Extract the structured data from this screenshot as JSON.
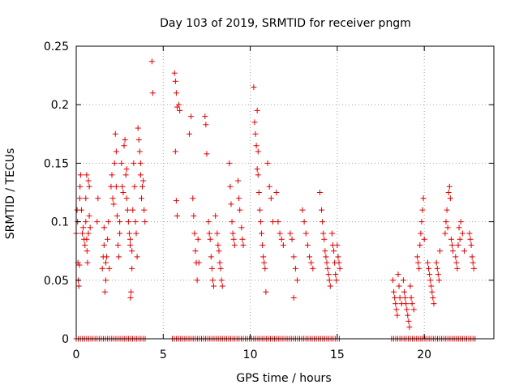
{
  "chart_data": {
    "type": "scatter",
    "title": "Day 103 of 2019, SRMTID for receiver pngm",
    "xlabel": "GPS time / hours",
    "ylabel": "SRMTID / TECUs",
    "xlim": [
      0,
      24
    ],
    "ylim": [
      0,
      0.25
    ],
    "x_ticks": [
      0,
      5,
      10,
      15,
      20
    ],
    "x_tick_labels": [
      "0",
      "5",
      "10",
      "15",
      "20"
    ],
    "y_ticks": [
      0,
      0.05,
      0.1,
      0.15,
      0.2,
      0.25
    ],
    "y_tick_labels": [
      "0",
      "0.05",
      "0.1",
      "0.15",
      "0.2",
      "0.25"
    ],
    "grid": true,
    "marker": "+",
    "color": "#e00000",
    "series": [
      {
        "name": "SRMTID",
        "points": [
          [
            0.0,
            0.09
          ],
          [
            0.05,
            0.11
          ],
          [
            0.08,
            0.1
          ],
          [
            0.1,
            0.065
          ],
          [
            0.12,
            0.05
          ],
          [
            0.15,
            0.045
          ],
          [
            0.18,
            0.063
          ],
          [
            0.2,
            0.12
          ],
          [
            0.22,
            0.13
          ],
          [
            0.25,
            0.14
          ],
          [
            0.3,
            0.11
          ],
          [
            0.35,
            0.09
          ],
          [
            0.4,
            0.095
          ],
          [
            0.45,
            0.085
          ],
          [
            0.5,
            0.08
          ],
          [
            0.55,
            0.1
          ],
          [
            0.55,
            0.12
          ],
          [
            0.6,
            0.14
          ],
          [
            0.6,
            0.085
          ],
          [
            0.62,
            0.075
          ],
          [
            0.65,
            0.065
          ],
          [
            0.7,
            0.09
          ],
          [
            0.7,
            0.135
          ],
          [
            0.75,
            0.13
          ],
          [
            0.75,
            0.105
          ],
          [
            0.8,
            0.095
          ],
          [
            1.2,
            0.1
          ],
          [
            1.25,
            0.12
          ],
          [
            1.5,
            0.06
          ],
          [
            1.55,
            0.07
          ],
          [
            1.6,
            0.08
          ],
          [
            1.6,
            0.095
          ],
          [
            1.65,
            0.04
          ],
          [
            1.7,
            0.05
          ],
          [
            1.7,
            0.065
          ],
          [
            1.75,
            0.07
          ],
          [
            1.8,
            0.085
          ],
          [
            1.85,
            0.1
          ],
          [
            1.9,
            0.06
          ],
          [
            2.0,
            0.13
          ],
          [
            2.05,
            0.14
          ],
          [
            2.1,
            0.12
          ],
          [
            2.15,
            0.115
          ],
          [
            2.2,
            0.15
          ],
          [
            2.25,
            0.175
          ],
          [
            2.3,
            0.16
          ],
          [
            2.3,
            0.13
          ],
          [
            2.35,
            0.105
          ],
          [
            2.4,
            0.08
          ],
          [
            2.45,
            0.07
          ],
          [
            2.5,
            0.1
          ],
          [
            2.5,
            0.09
          ],
          [
            2.6,
            0.15
          ],
          [
            2.65,
            0.13
          ],
          [
            2.7,
            0.125
          ],
          [
            2.75,
            0.165
          ],
          [
            2.8,
            0.17
          ],
          [
            2.85,
            0.14
          ],
          [
            2.9,
            0.12
          ],
          [
            2.9,
            0.145
          ],
          [
            2.95,
            0.11
          ],
          [
            3.0,
            0.1
          ],
          [
            3.05,
            0.09
          ],
          [
            3.1,
            0.085
          ],
          [
            3.1,
            0.08
          ],
          [
            3.12,
            0.035
          ],
          [
            3.15,
            0.04
          ],
          [
            3.2,
            0.06
          ],
          [
            3.2,
            0.075
          ],
          [
            3.25,
            0.11
          ],
          [
            3.3,
            0.15
          ],
          [
            3.35,
            0.13
          ],
          [
            3.4,
            0.1
          ],
          [
            3.45,
            0.09
          ],
          [
            3.5,
            0.07
          ],
          [
            3.55,
            0.18
          ],
          [
            3.6,
            0.17
          ],
          [
            3.65,
            0.16
          ],
          [
            3.7,
            0.15
          ],
          [
            3.7,
            0.14
          ],
          [
            3.75,
            0.12
          ],
          [
            3.8,
            0.13
          ],
          [
            3.85,
            0.135
          ],
          [
            3.9,
            0.11
          ],
          [
            3.95,
            0.1
          ],
          [
            4.35,
            0.237
          ],
          [
            4.4,
            0.21
          ],
          [
            5.65,
            0.227
          ],
          [
            5.7,
            0.22
          ],
          [
            5.75,
            0.21
          ],
          [
            5.8,
            0.198
          ],
          [
            5.7,
            0.16
          ],
          [
            5.75,
            0.118
          ],
          [
            5.8,
            0.105
          ],
          [
            5.9,
            0.2
          ],
          [
            5.95,
            0.195
          ],
          [
            6.5,
            0.175
          ],
          [
            6.6,
            0.19
          ],
          [
            6.7,
            0.12
          ],
          [
            6.75,
            0.105
          ],
          [
            6.8,
            0.09
          ],
          [
            6.85,
            0.075
          ],
          [
            6.9,
            0.065
          ],
          [
            6.95,
            0.05
          ],
          [
            7.0,
            0.085
          ],
          [
            7.05,
            0.065
          ],
          [
            7.4,
            0.19
          ],
          [
            7.45,
            0.183
          ],
          [
            7.5,
            0.158
          ],
          [
            7.6,
            0.1
          ],
          [
            7.65,
            0.09
          ],
          [
            7.7,
            0.085
          ],
          [
            7.75,
            0.07
          ],
          [
            7.8,
            0.06
          ],
          [
            7.85,
            0.05
          ],
          [
            7.9,
            0.045
          ],
          [
            8.0,
            0.105
          ],
          [
            8.1,
            0.09
          ],
          [
            8.15,
            0.08
          ],
          [
            8.2,
            0.075
          ],
          [
            8.25,
            0.065
          ],
          [
            8.3,
            0.06
          ],
          [
            8.35,
            0.05
          ],
          [
            8.4,
            0.045
          ],
          [
            8.8,
            0.15
          ],
          [
            8.85,
            0.13
          ],
          [
            8.9,
            0.115
          ],
          [
            8.95,
            0.1
          ],
          [
            9.0,
            0.09
          ],
          [
            9.05,
            0.085
          ],
          [
            9.1,
            0.08
          ],
          [
            9.3,
            0.135
          ],
          [
            9.35,
            0.12
          ],
          [
            9.4,
            0.11
          ],
          [
            9.5,
            0.095
          ],
          [
            9.55,
            0.085
          ],
          [
            9.6,
            0.08
          ],
          [
            10.2,
            0.215
          ],
          [
            10.25,
            0.185
          ],
          [
            10.3,
            0.175
          ],
          [
            10.35,
            0.165
          ],
          [
            10.4,
            0.195
          ],
          [
            10.45,
            0.16
          ],
          [
            10.4,
            0.145
          ],
          [
            10.45,
            0.14
          ],
          [
            10.5,
            0.125
          ],
          [
            10.55,
            0.11
          ],
          [
            10.6,
            0.1
          ],
          [
            10.65,
            0.09
          ],
          [
            10.7,
            0.08
          ],
          [
            10.75,
            0.07
          ],
          [
            10.8,
            0.065
          ],
          [
            10.85,
            0.06
          ],
          [
            10.9,
            0.04
          ],
          [
            11.0,
            0.15
          ],
          [
            11.1,
            0.13
          ],
          [
            11.2,
            0.12
          ],
          [
            11.3,
            0.1
          ],
          [
            11.5,
            0.125
          ],
          [
            11.6,
            0.1
          ],
          [
            11.7,
            0.09
          ],
          [
            11.8,
            0.085
          ],
          [
            11.9,
            0.08
          ],
          [
            12.3,
            0.09
          ],
          [
            12.4,
            0.085
          ],
          [
            12.5,
            0.07
          ],
          [
            12.6,
            0.06
          ],
          [
            12.7,
            0.05
          ],
          [
            12.5,
            0.035
          ],
          [
            13.0,
            0.11
          ],
          [
            13.1,
            0.1
          ],
          [
            13.2,
            0.09
          ],
          [
            13.3,
            0.08
          ],
          [
            13.4,
            0.07
          ],
          [
            13.5,
            0.065
          ],
          [
            13.6,
            0.06
          ],
          [
            14.0,
            0.125
          ],
          [
            14.1,
            0.11
          ],
          [
            14.15,
            0.1
          ],
          [
            14.2,
            0.09
          ],
          [
            14.25,
            0.085
          ],
          [
            14.3,
            0.075
          ],
          [
            14.35,
            0.07
          ],
          [
            14.4,
            0.065
          ],
          [
            14.45,
            0.06
          ],
          [
            14.5,
            0.055
          ],
          [
            14.55,
            0.05
          ],
          [
            14.6,
            0.045
          ],
          [
            14.7,
            0.09
          ],
          [
            14.75,
            0.08
          ],
          [
            14.8,
            0.075
          ],
          [
            14.85,
            0.065
          ],
          [
            14.9,
            0.055
          ],
          [
            14.95,
            0.05
          ],
          [
            15.0,
            0.08
          ],
          [
            15.05,
            0.07
          ],
          [
            15.1,
            0.065
          ],
          [
            15.15,
            0.06
          ],
          [
            18.2,
            0.05
          ],
          [
            18.25,
            0.04
          ],
          [
            18.3,
            0.035
          ],
          [
            18.35,
            0.03
          ],
          [
            18.4,
            0.025
          ],
          [
            18.45,
            0.02
          ],
          [
            18.5,
            0.055
          ],
          [
            18.55,
            0.045
          ],
          [
            18.6,
            0.035
          ],
          [
            18.7,
            0.03
          ],
          [
            18.8,
            0.05
          ],
          [
            18.85,
            0.04
          ],
          [
            18.9,
            0.035
          ],
          [
            18.95,
            0.03
          ],
          [
            19.0,
            0.025
          ],
          [
            19.05,
            0.02
          ],
          [
            19.1,
            0.015
          ],
          [
            19.15,
            0.01
          ],
          [
            19.2,
            0.045
          ],
          [
            19.25,
            0.035
          ],
          [
            19.3,
            0.03
          ],
          [
            19.4,
            0.025
          ],
          [
            19.6,
            0.07
          ],
          [
            19.65,
            0.065
          ],
          [
            19.7,
            0.06
          ],
          [
            19.75,
            0.08
          ],
          [
            19.8,
            0.09
          ],
          [
            19.85,
            0.1
          ],
          [
            19.9,
            0.11
          ],
          [
            19.95,
            0.12
          ],
          [
            20.0,
            0.085
          ],
          [
            20.2,
            0.065
          ],
          [
            20.25,
            0.06
          ],
          [
            20.3,
            0.055
          ],
          [
            20.35,
            0.05
          ],
          [
            20.4,
            0.045
          ],
          [
            20.45,
            0.04
          ],
          [
            20.5,
            0.035
          ],
          [
            20.55,
            0.03
          ],
          [
            20.7,
            0.065
          ],
          [
            20.75,
            0.06
          ],
          [
            20.8,
            0.055
          ],
          [
            20.85,
            0.05
          ],
          [
            20.9,
            0.075
          ],
          [
            21.2,
            0.09
          ],
          [
            21.25,
            0.1
          ],
          [
            21.3,
            0.11
          ],
          [
            21.35,
            0.095
          ],
          [
            21.4,
            0.125
          ],
          [
            21.45,
            0.13
          ],
          [
            21.5,
            0.12
          ],
          [
            21.55,
            0.085
          ],
          [
            21.6,
            0.08
          ],
          [
            21.65,
            0.075
          ],
          [
            21.8,
            0.07
          ],
          [
            21.85,
            0.065
          ],
          [
            21.9,
            0.06
          ],
          [
            21.95,
            0.08
          ],
          [
            22.0,
            0.095
          ],
          [
            22.05,
            0.085
          ],
          [
            22.1,
            0.1
          ],
          [
            22.2,
            0.09
          ],
          [
            22.3,
            0.075
          ],
          [
            22.6,
            0.09
          ],
          [
            22.65,
            0.085
          ],
          [
            22.7,
            0.08
          ],
          [
            22.75,
            0.07
          ],
          [
            22.8,
            0.065
          ],
          [
            22.85,
            0.06
          ]
        ]
      }
    ]
  }
}
